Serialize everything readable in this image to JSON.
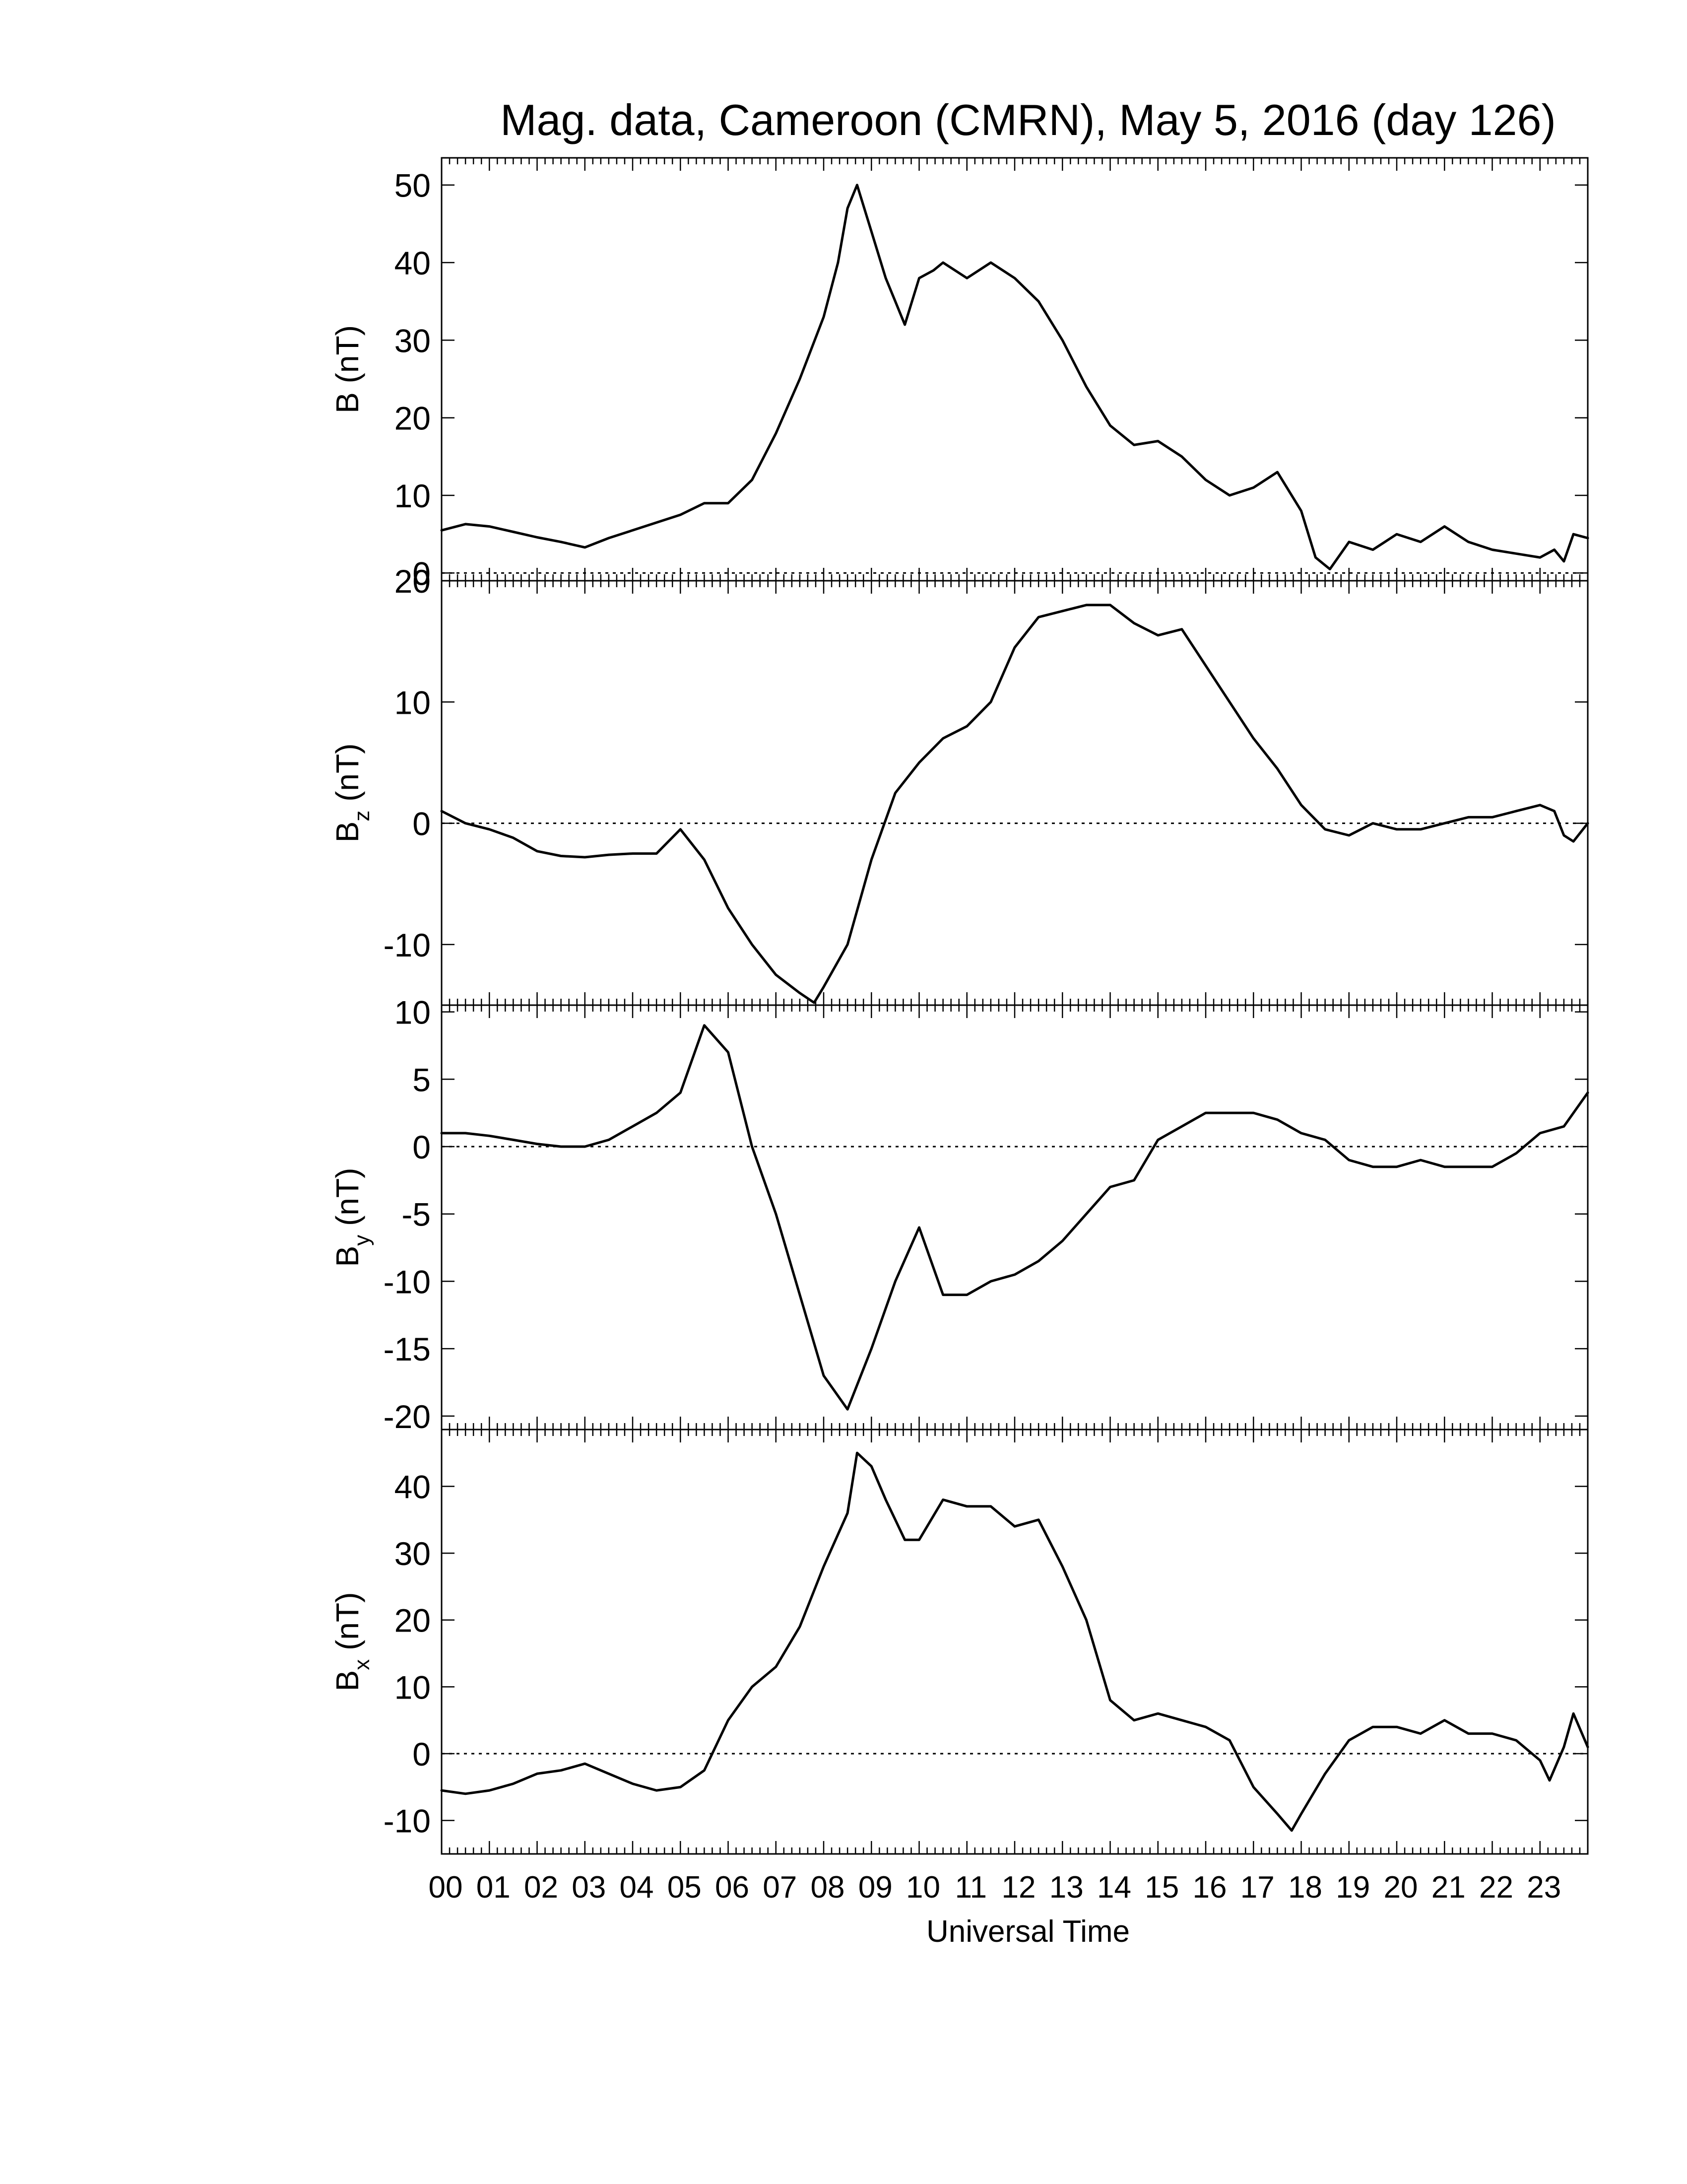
{
  "chart_data": {
    "type": "line",
    "title": "Mag. data, Cameroon (CMRN), May 5, 2016 (day 126)",
    "xlabel": "Universal Time",
    "x_unit": "hours UT",
    "xlim": [
      0,
      24
    ],
    "x_tick_labels": [
      "00",
      "01",
      "02",
      "03",
      "04",
      "05",
      "06",
      "07",
      "08",
      "09",
      "10",
      "11",
      "12",
      "13",
      "14",
      "15",
      "16",
      "17",
      "18",
      "19",
      "20",
      "21",
      "22",
      "23"
    ],
    "zero_reference_line": "dotted",
    "panels": [
      {
        "key": "B",
        "ylabel_main": "B",
        "ylabel_sub": "",
        "ylabel_unit": "(nT)",
        "ylim": [
          -1,
          53.5
        ],
        "yticks": [
          0,
          10,
          20,
          30,
          40,
          50
        ],
        "x": [
          0,
          0.5,
          1,
          1.5,
          2,
          2.5,
          3,
          3.5,
          4,
          4.5,
          5,
          5.5,
          6,
          6.5,
          7,
          7.5,
          8,
          8.3,
          8.5,
          8.7,
          9,
          9.3,
          9.5,
          9.7,
          10,
          10.3,
          10.5,
          11,
          11.5,
          12,
          12.5,
          13,
          13.5,
          14,
          14.5,
          15,
          15.5,
          16,
          16.5,
          17,
          17.5,
          18,
          18.3,
          18.6,
          19,
          19.5,
          20,
          20.5,
          21,
          21.5,
          22,
          22.5,
          23,
          23.3,
          23.5,
          23.7,
          24
        ],
        "values": [
          5.5,
          6.3,
          6,
          5.3,
          4.6,
          4,
          3.3,
          4.5,
          5.5,
          6.5,
          7.5,
          9,
          9,
          12,
          18,
          25,
          33,
          40,
          47,
          50,
          44,
          38,
          35,
          32,
          38,
          39,
          40,
          38,
          40,
          38,
          35,
          30,
          24,
          19,
          16.5,
          17,
          15,
          12,
          10,
          11,
          13,
          8,
          2,
          0.5,
          4,
          3,
          5,
          4,
          6,
          4,
          3,
          2.5,
          2,
          3,
          1.5,
          5,
          4.5
        ]
      },
      {
        "key": "Bz",
        "ylabel_main": "B",
        "ylabel_sub": "z",
        "ylabel_unit": "(nT)",
        "ylim": [
          -15,
          20
        ],
        "yticks": [
          -10,
          0,
          10,
          20
        ],
        "x": [
          0,
          0.5,
          1,
          1.5,
          2,
          2.5,
          3,
          3.5,
          4,
          4.5,
          5,
          5.5,
          6,
          6.5,
          7,
          7.5,
          7.8,
          8,
          8.5,
          9,
          9.5,
          10,
          10.5,
          11,
          11.5,
          12,
          12.5,
          13,
          13.5,
          14,
          14.5,
          15,
          15.5,
          16,
          16.5,
          17,
          17.5,
          18,
          18.5,
          19,
          19.5,
          20,
          20.5,
          21,
          21.5,
          22,
          22.5,
          23,
          23.3,
          23.5,
          23.7,
          24
        ],
        "values": [
          1,
          0,
          -0.5,
          -1.2,
          -2.3,
          -2.7,
          -2.8,
          -2.6,
          -2.5,
          -2.5,
          -0.5,
          -3,
          -7,
          -10,
          -12.5,
          -14,
          -14.8,
          -13.5,
          -10,
          -3,
          2.5,
          5,
          7,
          8,
          10,
          14.5,
          17,
          17.5,
          18,
          18,
          16.5,
          15.5,
          16,
          13,
          10,
          7,
          4.5,
          1.5,
          -0.5,
          -1,
          0,
          -0.5,
          -0.5,
          0,
          0.5,
          0.5,
          1,
          1.5,
          1,
          -1,
          -1.5,
          0
        ]
      },
      {
        "key": "By",
        "ylabel_main": "B",
        "ylabel_sub": "y",
        "ylabel_unit": "(nT)",
        "ylim": [
          -21,
          10.5
        ],
        "yticks": [
          -20,
          -15,
          -10,
          -5,
          0,
          5,
          10
        ],
        "x": [
          0,
          0.5,
          1,
          1.5,
          2,
          2.5,
          3,
          3.5,
          4,
          4.5,
          5,
          5.5,
          6,
          6.5,
          7,
          7.5,
          8,
          8.5,
          9,
          9.5,
          10,
          10.5,
          11,
          11.5,
          12,
          12.5,
          13,
          13.5,
          14,
          14.5,
          15,
          15.5,
          16,
          16.5,
          17,
          17.5,
          18,
          18.5,
          19,
          19.5,
          20,
          20.5,
          21,
          21.5,
          22,
          22.5,
          23,
          23.5,
          24
        ],
        "values": [
          1,
          1,
          0.8,
          0.5,
          0.2,
          0,
          0,
          0.5,
          1.5,
          2.5,
          4,
          9,
          7,
          0,
          -5,
          -11,
          -17,
          -19.5,
          -15,
          -10,
          -6,
          -11,
          -11,
          -10,
          -9.5,
          -8.5,
          -7,
          -5,
          -3,
          -2.5,
          0.5,
          1.5,
          2.5,
          2.5,
          2.5,
          2,
          1,
          0.5,
          -1,
          -1.5,
          -1.5,
          -1,
          -1.5,
          -1.5,
          -1.5,
          -0.5,
          1,
          1.5,
          4
        ]
      },
      {
        "key": "Bx",
        "ylabel_main": "B",
        "ylabel_sub": "x",
        "ylabel_unit": "(nT)",
        "ylim": [
          -15,
          48.5
        ],
        "yticks": [
          -10,
          0,
          10,
          20,
          30,
          40
        ],
        "x": [
          0,
          0.5,
          1,
          1.5,
          2,
          2.5,
          3,
          3.5,
          4,
          4.5,
          5,
          5.5,
          6,
          6.5,
          7,
          7.5,
          8,
          8.5,
          8.7,
          9,
          9.3,
          9.5,
          9.7,
          10,
          10.5,
          11,
          11.5,
          12,
          12.5,
          13,
          13.5,
          14,
          14.5,
          15,
          15.5,
          16,
          16.5,
          17,
          17.5,
          17.8,
          18,
          18.5,
          19,
          19.5,
          20,
          20.5,
          21,
          21.5,
          22,
          22.5,
          23,
          23.2,
          23.5,
          23.7,
          24
        ],
        "values": [
          -5.5,
          -6,
          -5.5,
          -4.5,
          -3,
          -2.5,
          -1.5,
          -3,
          -4.5,
          -5.5,
          -5,
          -2.5,
          5,
          10,
          13,
          19,
          28,
          36,
          45,
          43,
          38,
          35,
          32,
          32,
          38,
          37,
          37,
          34,
          35,
          28,
          20,
          8,
          5,
          6,
          5,
          4,
          2,
          -5,
          -9,
          -11.5,
          -9,
          -3,
          2,
          4,
          4,
          3,
          5,
          3,
          3,
          2,
          -1,
          -4,
          1,
          6,
          1
        ]
      }
    ]
  }
}
